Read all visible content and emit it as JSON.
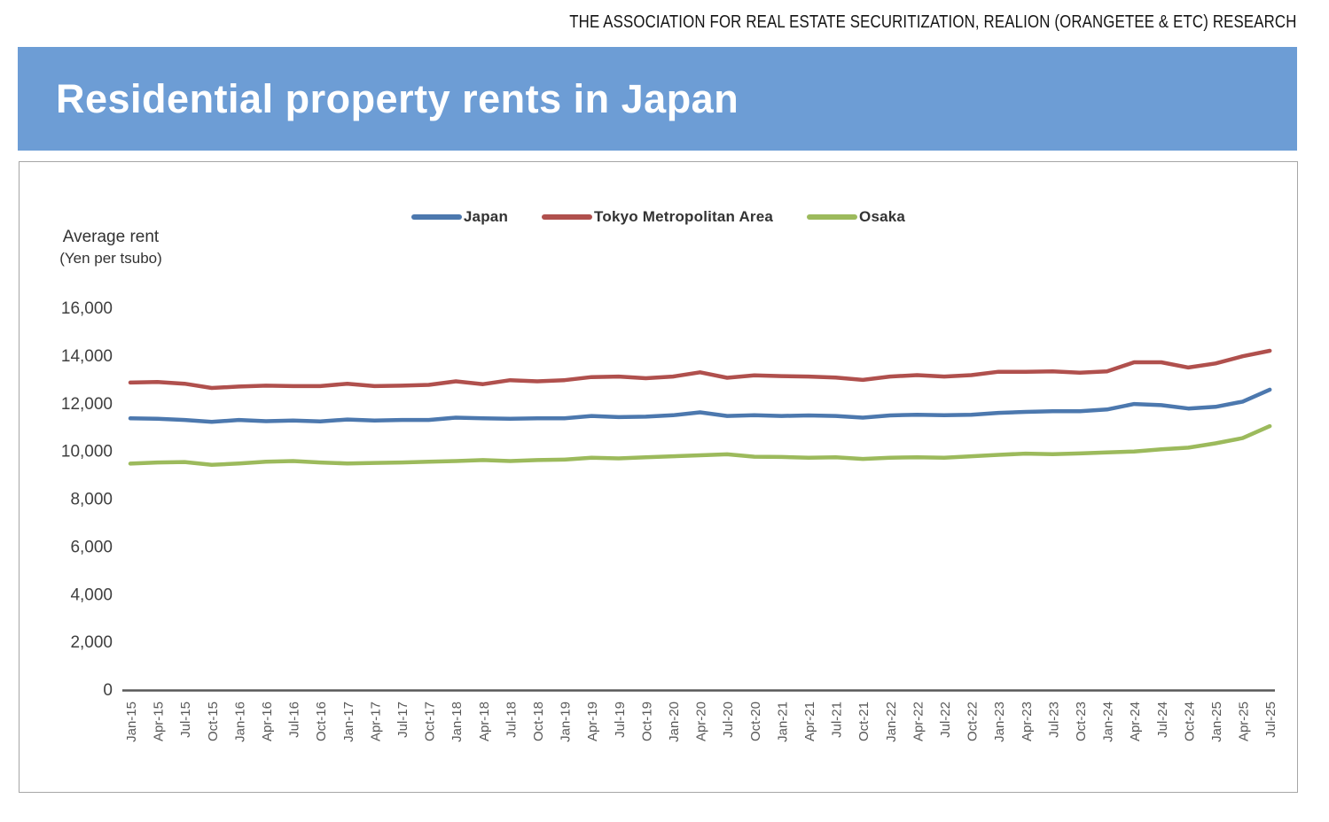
{
  "header": {
    "source_text": "THE ASSOCIATION FOR REAL ESTATE SECURITIZATION, REALION (ORANGETEE & ETC) RESEARCH"
  },
  "banner": {
    "title": "Residential property rents in Japan",
    "bg_color": "#6D9DD5",
    "text_color": "#FFFFFF"
  },
  "chart_data": {
    "type": "line",
    "title": "",
    "y_axis_title_line1": "Average rent",
    "y_axis_title_line2": "(Yen per tsubo)",
    "ylim": [
      0,
      16000
    ],
    "grid": false,
    "legend_position": "top",
    "axis_color": "#595959",
    "y_ticks": [
      {
        "value": 16000,
        "label": "16,000"
      },
      {
        "value": 14000,
        "label": "14,000"
      },
      {
        "value": 12000,
        "label": "12,000"
      },
      {
        "value": 10000,
        "label": "10,000"
      },
      {
        "value": 8000,
        "label": "8,000"
      },
      {
        "value": 6000,
        "label": "6,000"
      },
      {
        "value": 4000,
        "label": "4,000"
      },
      {
        "value": 2000,
        "label": "2,000"
      },
      {
        "value": 0,
        "label": "0"
      }
    ],
    "categories": [
      "Jan-15",
      "Apr-15",
      "Jul-15",
      "Oct-15",
      "Jan-16",
      "Apr-16",
      "Jul-16",
      "Oct-16",
      "Jan-17",
      "Apr-17",
      "Jul-17",
      "Oct-17",
      "Jan-18",
      "Apr-18",
      "Jul-18",
      "Oct-18",
      "Jan-19",
      "Apr-19",
      "Jul-19",
      "Oct-19",
      "Jan-20",
      "Apr-20",
      "Jul-20",
      "Oct-20",
      "Jan-21",
      "Apr-21",
      "Jul-21",
      "Oct-21",
      "Jan-22",
      "Apr-22",
      "Jul-22",
      "Oct-22",
      "Jan-23",
      "Apr-23",
      "Jul-23",
      "Oct-23",
      "Jan-24",
      "Apr-24",
      "Jul-24",
      "Oct-24",
      "Jan-25",
      "Apr-25",
      "Jul-25"
    ],
    "series": [
      {
        "name": "Japan",
        "color": "#4C78AE",
        "values": [
          11350,
          11330,
          11280,
          11200,
          11280,
          11230,
          11260,
          11220,
          11300,
          11260,
          11280,
          11280,
          11380,
          11350,
          11330,
          11350,
          11350,
          11450,
          11400,
          11420,
          11480,
          11600,
          11450,
          11480,
          11450,
          11470,
          11450,
          11380,
          11470,
          11500,
          11480,
          11500,
          11580,
          11620,
          11650,
          11650,
          11720,
          11950,
          11900,
          11760,
          11830,
          12050,
          12550
        ]
      },
      {
        "name": "Tokyo Metropolitan Area",
        "color": "#B0504D",
        "values": [
          12850,
          12870,
          12800,
          12620,
          12680,
          12720,
          12700,
          12700,
          12800,
          12700,
          12720,
          12750,
          12900,
          12780,
          12950,
          12900,
          12950,
          13080,
          13100,
          13030,
          13100,
          13280,
          13050,
          13150,
          13120,
          13100,
          13060,
          12960,
          13100,
          13160,
          13100,
          13160,
          13300,
          13300,
          13320,
          13260,
          13320,
          13700,
          13700,
          13480,
          13650,
          13950,
          14180
        ]
      },
      {
        "name": "Osaka",
        "color": "#9CBA5C",
        "values": [
          9450,
          9500,
          9520,
          9400,
          9460,
          9530,
          9560,
          9500,
          9460,
          9480,
          9500,
          9530,
          9560,
          9600,
          9560,
          9600,
          9620,
          9700,
          9670,
          9720,
          9760,
          9800,
          9840,
          9740,
          9730,
          9700,
          9720,
          9650,
          9700,
          9720,
          9700,
          9760,
          9820,
          9870,
          9850,
          9880,
          9920,
          9960,
          10050,
          10120,
          10300,
          10520,
          11020
        ]
      }
    ]
  }
}
